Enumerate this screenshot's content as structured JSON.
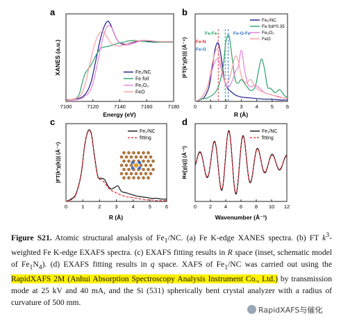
{
  "caption": {
    "lead": "Figure S21.",
    "text1": " Atomic structural analysis of Fe",
    "sub1": "1",
    "text2": "/NC. (a) Fe K-edge XANES spectra. (b) FT ",
    "kvar": "k",
    "ksup": "3",
    "text3": "-weighted Fe K-edge EXAFS spectra. (c) EXAFS fitting results in ",
    "rvar": "R",
    "text4": " space (inset, schematic model of Fe",
    "sub2": "1",
    "text5": "N",
    "sub3": "4",
    "text6": "). (d) EXAFS fitting results in ",
    "qvar": "q",
    "text7": " space. XAFS of Fe",
    "sub4": "1",
    "text8": "/NC was carried out using the ",
    "highlight": "RapidXAFS 2M (Anhui Absorption Spectroscopy Analysis Instrument Co., Ltd.)",
    "text9": " by transmission mode at 25 kV and 40 mA, and the Si (531) spherically bent crystal analyzer with a radius of curvature of 500 mm."
  },
  "watermark": "RapidXAFS与催化",
  "colors": {
    "fe1nc": "#1a1a8c",
    "fefoil": "#2aa06b",
    "fe2o3": "#e87fd6",
    "feo": "#f2a0a0",
    "fitting": "#e0303a",
    "ref": "#2b6fc9"
  },
  "chart_data": [
    {
      "panel": "a",
      "type": "line",
      "xlabel": "Energy (eV)",
      "ylabel": "XANES (a.u.)",
      "xlim": [
        7100,
        7180
      ],
      "xticks": [
        7100,
        7120,
        7140,
        7160,
        7180
      ],
      "ylim": [
        0,
        1.45
      ],
      "legend_position": "lower-right",
      "series": [
        {
          "name": "Fe₁/NC",
          "color": "#1a1a8c",
          "x": [
            7100,
            7104,
            7108,
            7111,
            7113,
            7115,
            7117,
            7119,
            7121,
            7123,
            7125,
            7127,
            7129,
            7131,
            7133,
            7135,
            7138,
            7141,
            7145,
            7150,
            7155,
            7160,
            7165,
            7170,
            7175,
            7180
          ],
          "y": [
            0.03,
            0.03,
            0.04,
            0.06,
            0.09,
            0.14,
            0.22,
            0.35,
            0.55,
            0.77,
            0.98,
            1.15,
            1.27,
            1.33,
            1.28,
            1.17,
            1.02,
            0.96,
            0.95,
            0.98,
            1.0,
            1.0,
            0.99,
            0.99,
            0.99,
            0.99
          ]
        },
        {
          "name": "Fe foil",
          "color": "#2aa06b",
          "x": [
            7100,
            7104,
            7108,
            7110,
            7112,
            7114,
            7116,
            7118,
            7120,
            7122,
            7124,
            7126,
            7128,
            7131,
            7134,
            7138,
            7142,
            7146,
            7150,
            7155,
            7160,
            7165,
            7170,
            7175,
            7180
          ],
          "y": [
            0.02,
            0.03,
            0.06,
            0.13,
            0.3,
            0.45,
            0.52,
            0.58,
            0.66,
            0.75,
            0.83,
            0.88,
            0.9,
            0.91,
            0.93,
            0.96,
            0.98,
            1.0,
            1.01,
            1.0,
            0.99,
            0.98,
            0.98,
            0.98,
            0.98
          ]
        },
        {
          "name": "Fe₂O₃",
          "color": "#e87fd6",
          "x": [
            7100,
            7104,
            7108,
            7112,
            7114,
            7116,
            7118,
            7120,
            7122,
            7124,
            7126,
            7128,
            7130,
            7132,
            7134,
            7136,
            7138,
            7141,
            7145,
            7150,
            7155,
            7160,
            7165,
            7170,
            7175,
            7180
          ],
          "y": [
            0.02,
            0.02,
            0.03,
            0.05,
            0.09,
            0.12,
            0.18,
            0.3,
            0.48,
            0.7,
            0.92,
            1.1,
            1.22,
            1.26,
            1.22,
            1.12,
            1.02,
            0.95,
            0.93,
            0.96,
            1.0,
            1.01,
            1.0,
            0.99,
            0.99,
            0.99
          ]
        },
        {
          "name": "FeO",
          "color": "#f2a0a0",
          "x": [
            7100,
            7104,
            7108,
            7111,
            7113,
            7115,
            7117,
            7119,
            7121,
            7123,
            7125,
            7127,
            7129,
            7131,
            7133,
            7136,
            7140,
            7145,
            7150,
            7155,
            7160,
            7165,
            7170,
            7175,
            7180
          ],
          "y": [
            0.02,
            0.03,
            0.05,
            0.1,
            0.2,
            0.35,
            0.55,
            0.75,
            0.92,
            1.06,
            1.13,
            1.16,
            1.12,
            1.05,
            0.98,
            0.93,
            0.92,
            0.95,
            0.99,
            1.01,
            1.01,
            1.0,
            0.99,
            0.99,
            0.99
          ]
        }
      ]
    },
    {
      "panel": "b",
      "type": "line",
      "xlabel": "R (Å)",
      "ylabel": "|FT(k³χ(k))| (Å⁻⁴)",
      "xlim": [
        0,
        6
      ],
      "xticks": [
        0,
        1,
        2,
        3,
        4,
        5,
        6
      ],
      "ylim": [
        0,
        1.2
      ],
      "legend_position": "top-right",
      "annotations": [
        "Fe-Fe",
        "Fe-N",
        "Fe-O",
        "Fe-O-Fe"
      ],
      "series": [
        {
          "name": "Fe₁/NC",
          "color": "#1a1a8c",
          "x": [
            0.0,
            0.3,
            0.6,
            0.9,
            1.1,
            1.3,
            1.5,
            1.7,
            1.9,
            2.1,
            2.3,
            2.6,
            3.0,
            3.5,
            4.0,
            4.5,
            5.0,
            5.5,
            6.0
          ],
          "y": [
            0.0,
            0.02,
            0.06,
            0.2,
            0.45,
            0.72,
            0.8,
            0.6,
            0.3,
            0.18,
            0.14,
            0.09,
            0.06,
            0.05,
            0.04,
            0.03,
            0.03,
            0.02,
            0.02
          ]
        },
        {
          "name": "Fe foil*0.35",
          "color": "#2aa06b",
          "x": [
            0.0,
            0.4,
            0.8,
            1.2,
            1.5,
            1.8,
            2.0,
            2.2,
            2.4,
            2.6,
            2.8,
            3.0,
            3.3,
            3.6,
            3.9,
            4.1,
            4.3,
            4.5,
            4.7,
            4.9,
            5.2,
            5.5,
            5.8,
            6.0
          ],
          "y": [
            0.0,
            0.03,
            0.05,
            0.1,
            0.2,
            0.45,
            0.82,
            0.9,
            0.6,
            0.3,
            0.25,
            0.3,
            0.22,
            0.15,
            0.2,
            0.4,
            0.58,
            0.45,
            0.2,
            0.18,
            0.12,
            0.16,
            0.08,
            0.05
          ]
        },
        {
          "name": "Fe₂O₃",
          "color": "#e87fd6",
          "x": [
            0.0,
            0.4,
            0.8,
            1.0,
            1.2,
            1.4,
            1.6,
            1.8,
            2.0,
            2.2,
            2.4,
            2.6,
            2.8,
            3.0,
            3.2,
            3.4,
            3.6,
            3.9,
            4.2,
            4.5,
            4.8,
            5.1,
            5.4,
            5.7,
            6.0
          ],
          "y": [
            0.0,
            0.05,
            0.2,
            0.35,
            0.5,
            0.58,
            0.52,
            0.35,
            0.22,
            0.2,
            0.28,
            0.4,
            0.48,
            0.7,
            0.45,
            0.25,
            0.2,
            0.22,
            0.18,
            0.12,
            0.1,
            0.08,
            0.07,
            0.05,
            0.04
          ]
        },
        {
          "name": "FeO",
          "color": "#f2a0a0",
          "x": [
            0.0,
            0.4,
            0.8,
            1.0,
            1.2,
            1.4,
            1.6,
            1.8,
            2.0,
            2.2,
            2.4,
            2.6,
            2.8,
            3.0,
            3.3,
            3.6,
            3.9,
            4.2,
            4.5,
            4.8,
            5.1,
            5.4,
            5.7,
            6.0
          ],
          "y": [
            0.0,
            0.05,
            0.2,
            0.4,
            0.6,
            0.72,
            0.6,
            0.38,
            0.25,
            0.3,
            0.45,
            0.62,
            0.55,
            0.35,
            0.25,
            0.3,
            0.2,
            0.15,
            0.12,
            0.1,
            0.08,
            0.06,
            0.05,
            0.04
          ]
        }
      ]
    },
    {
      "panel": "c",
      "type": "line",
      "xlabel": "R (Å)",
      "ylabel": "|FT(k³χ(k))| (Å⁻⁴)",
      "xlim": [
        0,
        6
      ],
      "xticks": [
        0,
        1,
        2,
        3,
        4,
        5,
        6
      ],
      "ylim": [
        0,
        1.0
      ],
      "legend_position": "top-right",
      "series": [
        {
          "name": "Fe₁/NC",
          "color": "#111111",
          "x": [
            0.0,
            0.3,
            0.6,
            0.9,
            1.1,
            1.3,
            1.5,
            1.7,
            1.9,
            2.1,
            2.3,
            2.5,
            2.7,
            2.9,
            3.1,
            3.3,
            3.6,
            3.9,
            4.2,
            4.5,
            4.8,
            5.1,
            5.4,
            5.7,
            6.0
          ],
          "y": [
            0.0,
            0.03,
            0.1,
            0.35,
            0.7,
            0.9,
            0.88,
            0.58,
            0.32,
            0.3,
            0.28,
            0.2,
            0.16,
            0.18,
            0.2,
            0.13,
            0.11,
            0.09,
            0.07,
            0.06,
            0.05,
            0.04,
            0.04,
            0.03,
            0.03
          ]
        },
        {
          "name": "fitting",
          "color": "#e0303a",
          "dashed": true,
          "x": [
            0.0,
            0.3,
            0.6,
            0.9,
            1.1,
            1.3,
            1.5,
            1.7,
            1.9,
            2.1,
            2.3,
            2.5,
            2.7,
            2.9,
            3.1,
            3.3,
            3.6,
            3.9,
            4.2,
            4.5,
            4.8,
            5.1,
            5.4,
            5.7,
            6.0
          ],
          "y": [
            0.0,
            0.02,
            0.09,
            0.34,
            0.69,
            0.89,
            0.87,
            0.57,
            0.31,
            0.28,
            0.24,
            0.18,
            0.14,
            0.12,
            0.1,
            0.08,
            0.06,
            0.05,
            0.04,
            0.03,
            0.02,
            0.02,
            0.01,
            0.01,
            0.01
          ]
        }
      ]
    },
    {
      "panel": "d",
      "type": "line",
      "xlabel": "Wavenumber (Å⁻¹)",
      "ylabel": "Re[χ(q)] (Å⁻³)",
      "xlim": [
        0,
        12
      ],
      "xticks": [
        0,
        2,
        4,
        6,
        8,
        10,
        12
      ],
      "ylim": [
        -1.2,
        1.2
      ],
      "legend_position": "top-right",
      "series": [
        {
          "name": "Fe₁/NC",
          "color": "#111111",
          "oscillation": {
            "amplitude": 1.0,
            "period": 1.9,
            "center": 4.8,
            "width": 3.0,
            "floor": 0.22
          }
        },
        {
          "name": "fitting",
          "color": "#e0303a",
          "dashed": true,
          "oscillation": {
            "amplitude": 0.97,
            "period": 1.9,
            "center": 4.8,
            "width": 3.0,
            "floor": 0.2
          }
        }
      ]
    }
  ]
}
